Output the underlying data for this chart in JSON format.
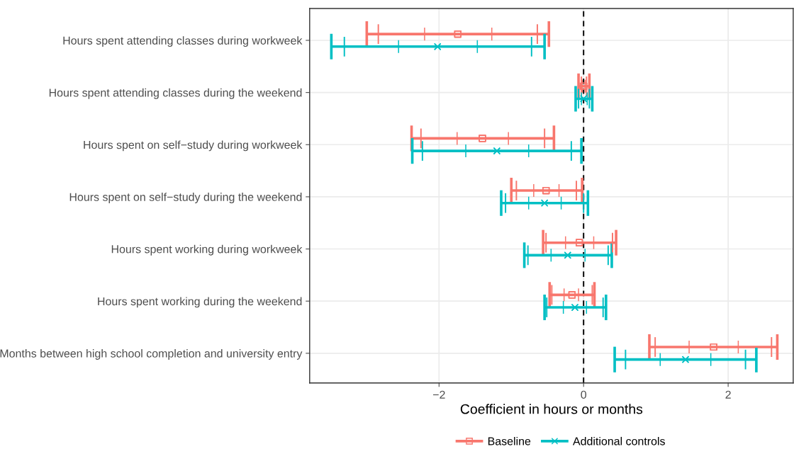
{
  "chart_data": {
    "type": "scatter",
    "orientation": "horizontal",
    "xlabel": "Coefficient in hours or months",
    "categories": [
      "Hours spent attending classes during workweek",
      "Hours spent attending classes during the weekend",
      "Hours spent on self−study during workweek",
      "Hours spent on self−study during the weekend",
      "Hours spent working during workweek",
      "Hours spent working during the weekend",
      "Months between high school completion and university entry"
    ],
    "xlim": [
      -3.79,
      2.9
    ],
    "xticks": [
      {
        "value": -2,
        "label": "−2"
      },
      0,
      2
    ],
    "grid": true,
    "legend": "bottom",
    "ref_lines": [
      {
        "axis": "x",
        "value": 0,
        "color": "#000000",
        "line_style": "dashed"
      }
    ],
    "series": [
      {
        "name": "Baseline",
        "color": "#f8766d",
        "marker": "square",
        "values": [
          -1.74,
          0.0,
          -1.4,
          -0.52,
          -0.06,
          -0.16,
          1.8
        ],
        "errors": [
          [
            -3.0,
            -0.48
          ],
          [
            -0.07,
            0.08
          ],
          [
            -2.38,
            -0.41
          ],
          [
            -1.0,
            -0.02
          ],
          [
            -0.56,
            0.45
          ],
          [
            -0.47,
            0.15
          ],
          [
            0.91,
            2.68
          ]
        ]
      },
      {
        "color": "#f8766d",
        "marker": "square",
        "values": [
          -1.74,
          0.0,
          -1.4,
          -0.52,
          -0.06,
          -0.16,
          1.8
        ],
        "errors": [
          [
            -2.84,
            -0.64
          ],
          [
            -0.03,
            0.04
          ],
          [
            -2.25,
            -0.54
          ],
          [
            -0.93,
            -0.1
          ],
          [
            -0.52,
            0.4
          ],
          [
            -0.44,
            0.12
          ],
          [
            0.99,
            2.6
          ]
        ]
      },
      {
        "color": "#f8766d",
        "marker": "square",
        "values": [
          -1.74,
          0.0,
          -1.4,
          -0.52,
          -0.06,
          -0.16,
          1.8
        ],
        "errors": [
          [
            -2.2,
            -1.27
          ],
          [
            -0.02,
            0.02
          ],
          [
            -1.75,
            -1.04
          ],
          [
            -0.69,
            -0.34
          ],
          [
            -0.25,
            0.14
          ],
          [
            -0.27,
            -0.07
          ],
          [
            1.46,
            2.14
          ]
        ]
      },
      {
        "name": "Additional controls",
        "color": "#00bfc4",
        "marker": "cross",
        "values": [
          -2.02,
          0.0,
          -1.2,
          -0.54,
          -0.22,
          -0.12,
          1.41
        ],
        "errors": [
          [
            -3.49,
            -0.54
          ],
          [
            -0.11,
            0.12
          ],
          [
            -2.37,
            -0.03
          ],
          [
            -1.14,
            0.06
          ],
          [
            -0.82,
            0.39
          ],
          [
            -0.54,
            0.31
          ],
          [
            0.43,
            2.39
          ]
        ]
      },
      {
        "color": "#00bfc4",
        "marker": "cross",
        "values": [
          -2.02,
          0.0,
          -1.2,
          -0.54,
          -0.22,
          -0.12,
          1.41
        ],
        "errors": [
          [
            -3.31,
            -0.72
          ],
          [
            -0.07,
            0.08
          ],
          [
            -2.23,
            -0.17
          ],
          [
            -1.08,
            0.0
          ],
          [
            -0.77,
            0.34
          ],
          [
            -0.51,
            0.27
          ],
          [
            0.58,
            2.24
          ]
        ]
      },
      {
        "color": "#00bfc4",
        "marker": "cross",
        "values": [
          -2.02,
          0.0,
          -1.2,
          -0.54,
          -0.22,
          -0.12,
          1.41
        ],
        "errors": [
          [
            -2.56,
            -1.47
          ],
          [
            -0.03,
            0.05
          ],
          [
            -1.63,
            -0.76
          ],
          [
            -0.76,
            -0.31
          ],
          [
            -0.45,
            0.02
          ],
          [
            -0.28,
            0.04
          ],
          [
            1.06,
            1.76
          ]
        ]
      }
    ]
  }
}
